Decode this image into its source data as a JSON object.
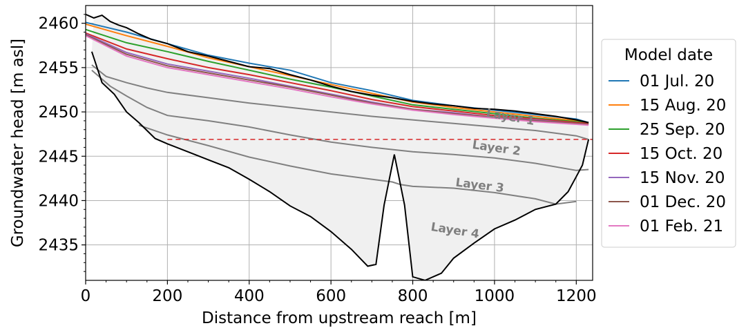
{
  "chart_data": {
    "type": "line",
    "xlabel": "Distance from upstream reach [m]",
    "ylabel": "Groundwater head [m asl]",
    "xlim": [
      0,
      1240
    ],
    "ylim": [
      2431,
      2462
    ],
    "xticks": [
      0,
      200,
      400,
      600,
      800,
      1000,
      1200
    ],
    "yticks": [
      2435,
      2440,
      2445,
      2450,
      2455,
      2460
    ],
    "grid": true,
    "legend": {
      "title": "Model date",
      "placement": "outside-right",
      "entries": [
        "01 Jul. 20",
        "15 Aug. 20",
        "25 Sep. 20",
        "15 Oct. 20",
        "15 Nov. 20",
        "01 Dec. 20",
        "01 Feb. 21"
      ]
    },
    "series": [
      {
        "name": "01 Jul. 20",
        "color": "#1f77b4",
        "x": [
          0,
          100,
          200,
          300,
          400,
          500,
          600,
          700,
          800,
          900,
          1000,
          1100,
          1200,
          1230
        ],
        "y": [
          2460.1,
          2459.0,
          2457.7,
          2456.4,
          2455.5,
          2454.7,
          2453.3,
          2452.4,
          2451.3,
          2450.7,
          2450.2,
          2449.7,
          2449.2,
          2448.8
        ]
      },
      {
        "name": "15 Aug. 20",
        "color": "#ff7f0e",
        "x": [
          0,
          100,
          200,
          300,
          400,
          500,
          600,
          700,
          800,
          900,
          1000,
          1100,
          1200,
          1230
        ],
        "y": [
          2459.9,
          2458.6,
          2457.4,
          2456.1,
          2455.1,
          2454.1,
          2453.1,
          2452.1,
          2451.1,
          2450.5,
          2450.0,
          2449.5,
          2449.0,
          2448.8
        ]
      },
      {
        "name": "25 Sep. 20",
        "color": "#2ca02c",
        "x": [
          0,
          100,
          200,
          300,
          400,
          500,
          600,
          700,
          800,
          900,
          1000,
          1100,
          1200,
          1230
        ],
        "y": [
          2459.3,
          2457.8,
          2456.8,
          2455.7,
          2454.7,
          2453.7,
          2452.8,
          2451.8,
          2450.8,
          2450.3,
          2449.8,
          2449.3,
          2448.9,
          2448.7
        ]
      },
      {
        "name": "15 Oct. 20",
        "color": "#d62728",
        "x": [
          0,
          100,
          200,
          300,
          400,
          500,
          600,
          700,
          800,
          900,
          1000,
          1100,
          1200,
          1230
        ],
        "y": [
          2458.9,
          2457.1,
          2456.0,
          2455.0,
          2454.2,
          2453.3,
          2452.4,
          2451.4,
          2450.6,
          2450.1,
          2449.6,
          2449.2,
          2448.8,
          2448.7
        ]
      },
      {
        "name": "15 Nov. 20",
        "color": "#9467bd",
        "x": [
          0,
          100,
          200,
          300,
          400,
          500,
          600,
          700,
          800,
          900,
          1000,
          1100,
          1200,
          1230
        ],
        "y": [
          2458.8,
          2456.7,
          2455.4,
          2454.6,
          2453.8,
          2452.9,
          2452.0,
          2451.1,
          2450.3,
          2449.9,
          2449.4,
          2449.1,
          2448.7,
          2448.6
        ]
      },
      {
        "name": "01 Dec. 20",
        "color": "#8c564b",
        "x": [
          0,
          100,
          200,
          300,
          400,
          500,
          600,
          700,
          800,
          900,
          1000,
          1100,
          1200,
          1230
        ],
        "y": [
          2458.7,
          2456.5,
          2455.2,
          2454.4,
          2453.6,
          2452.8,
          2451.9,
          2451.0,
          2450.3,
          2449.8,
          2449.4,
          2449.0,
          2448.7,
          2448.6
        ]
      },
      {
        "name": "01 Feb. 21",
        "color": "#e377c2",
        "x": [
          0,
          100,
          200,
          300,
          400,
          500,
          600,
          700,
          800,
          900,
          1000,
          1100,
          1200,
          1230
        ],
        "y": [
          2458.6,
          2456.3,
          2455.0,
          2454.2,
          2453.4,
          2452.6,
          2451.7,
          2450.9,
          2450.2,
          2449.7,
          2449.3,
          2448.9,
          2448.6,
          2448.5
        ]
      }
    ],
    "ground_surface": {
      "color": "#000000",
      "x": [
        0,
        20,
        40,
        60,
        80,
        100,
        130,
        160,
        200,
        250,
        300,
        350,
        400,
        450,
        500,
        550,
        600,
        650,
        700,
        750,
        800,
        850,
        900,
        950,
        1000,
        1050,
        1100,
        1150,
        1200,
        1230
      ],
      "y": [
        2461.0,
        2460.6,
        2460.9,
        2460.2,
        2459.8,
        2459.5,
        2458.8,
        2458.2,
        2457.7,
        2456.8,
        2456.3,
        2455.7,
        2455.1,
        2454.9,
        2454.2,
        2453.6,
        2452.9,
        2452.3,
        2451.9,
        2451.6,
        2451.2,
        2450.9,
        2450.7,
        2450.4,
        2450.3,
        2450.1,
        2449.8,
        2449.5,
        2449.1,
        2448.8
      ]
    },
    "bedrock": {
      "color": "#000000",
      "x": [
        15,
        40,
        70,
        100,
        130,
        170,
        200,
        250,
        300,
        350,
        400,
        450,
        500,
        550,
        600,
        650,
        690,
        710,
        730,
        755,
        780,
        800,
        830,
        870,
        900,
        950,
        1000,
        1050,
        1100,
        1150,
        1180,
        1200,
        1215,
        1230
      ],
      "y": [
        2456.8,
        2453.3,
        2452.0,
        2450.0,
        2448.8,
        2447.0,
        2446.4,
        2445.5,
        2444.6,
        2443.7,
        2442.4,
        2441.0,
        2439.4,
        2438.2,
        2436.5,
        2434.5,
        2432.6,
        2432.8,
        2439.5,
        2445.2,
        2439.5,
        2431.4,
        2431.0,
        2431.8,
        2433.5,
        2435.2,
        2436.8,
        2437.8,
        2439.0,
        2439.6,
        2441.0,
        2442.7,
        2444.0,
        2446.9
      ]
    },
    "layer_boundaries": [
      {
        "color": "#808080",
        "x": [
          15,
          50,
          100,
          150,
          200,
          300,
          400,
          500,
          600,
          700,
          800,
          900,
          1000,
          1100,
          1150,
          1200,
          1230
        ],
        "y": [
          2455.3,
          2454.0,
          2453.3,
          2452.7,
          2452.2,
          2451.6,
          2451.0,
          2450.5,
          2450.0,
          2449.5,
          2449.1,
          2448.7,
          2448.3,
          2447.9,
          2447.6,
          2447.3,
          2446.9
        ]
      },
      {
        "color": "#808080",
        "x": [
          15,
          60,
          100,
          150,
          200,
          300,
          400,
          500,
          600,
          700,
          800,
          900,
          1000,
          1100,
          1200,
          1230
        ],
        "y": [
          2454.7,
          2452.9,
          2451.8,
          2450.5,
          2449.6,
          2449.0,
          2448.3,
          2447.4,
          2446.6,
          2446.0,
          2445.5,
          2445.2,
          2444.8,
          2444.2,
          2443.4,
          2443.5
        ]
      },
      {
        "color": "#808080",
        "x": [
          130,
          200,
          300,
          400,
          500,
          600,
          700,
          750,
          770,
          800,
          900,
          1000,
          1100,
          1150,
          1200
        ],
        "y": [
          2448.5,
          2447.4,
          2446.2,
          2444.9,
          2443.9,
          2443.0,
          2442.4,
          2442.1,
          2441.8,
          2441.6,
          2441.4,
          2440.9,
          2440.2,
          2439.6,
          2439.9
        ]
      }
    ],
    "reference_line": {
      "y": 2446.9,
      "color": "#d62728",
      "style": "dashed"
    },
    "annotations": [
      {
        "text": "Layer 1",
        "x": 1000,
        "y": 2449.0
      },
      {
        "text": "Layer 2",
        "x": 1000,
        "y": 2445.5
      },
      {
        "text": "Layer 3",
        "x": 1000,
        "y": 2441.3
      },
      {
        "text": "Layer 4",
        "x": 1000,
        "y": 2436.2
      }
    ]
  }
}
